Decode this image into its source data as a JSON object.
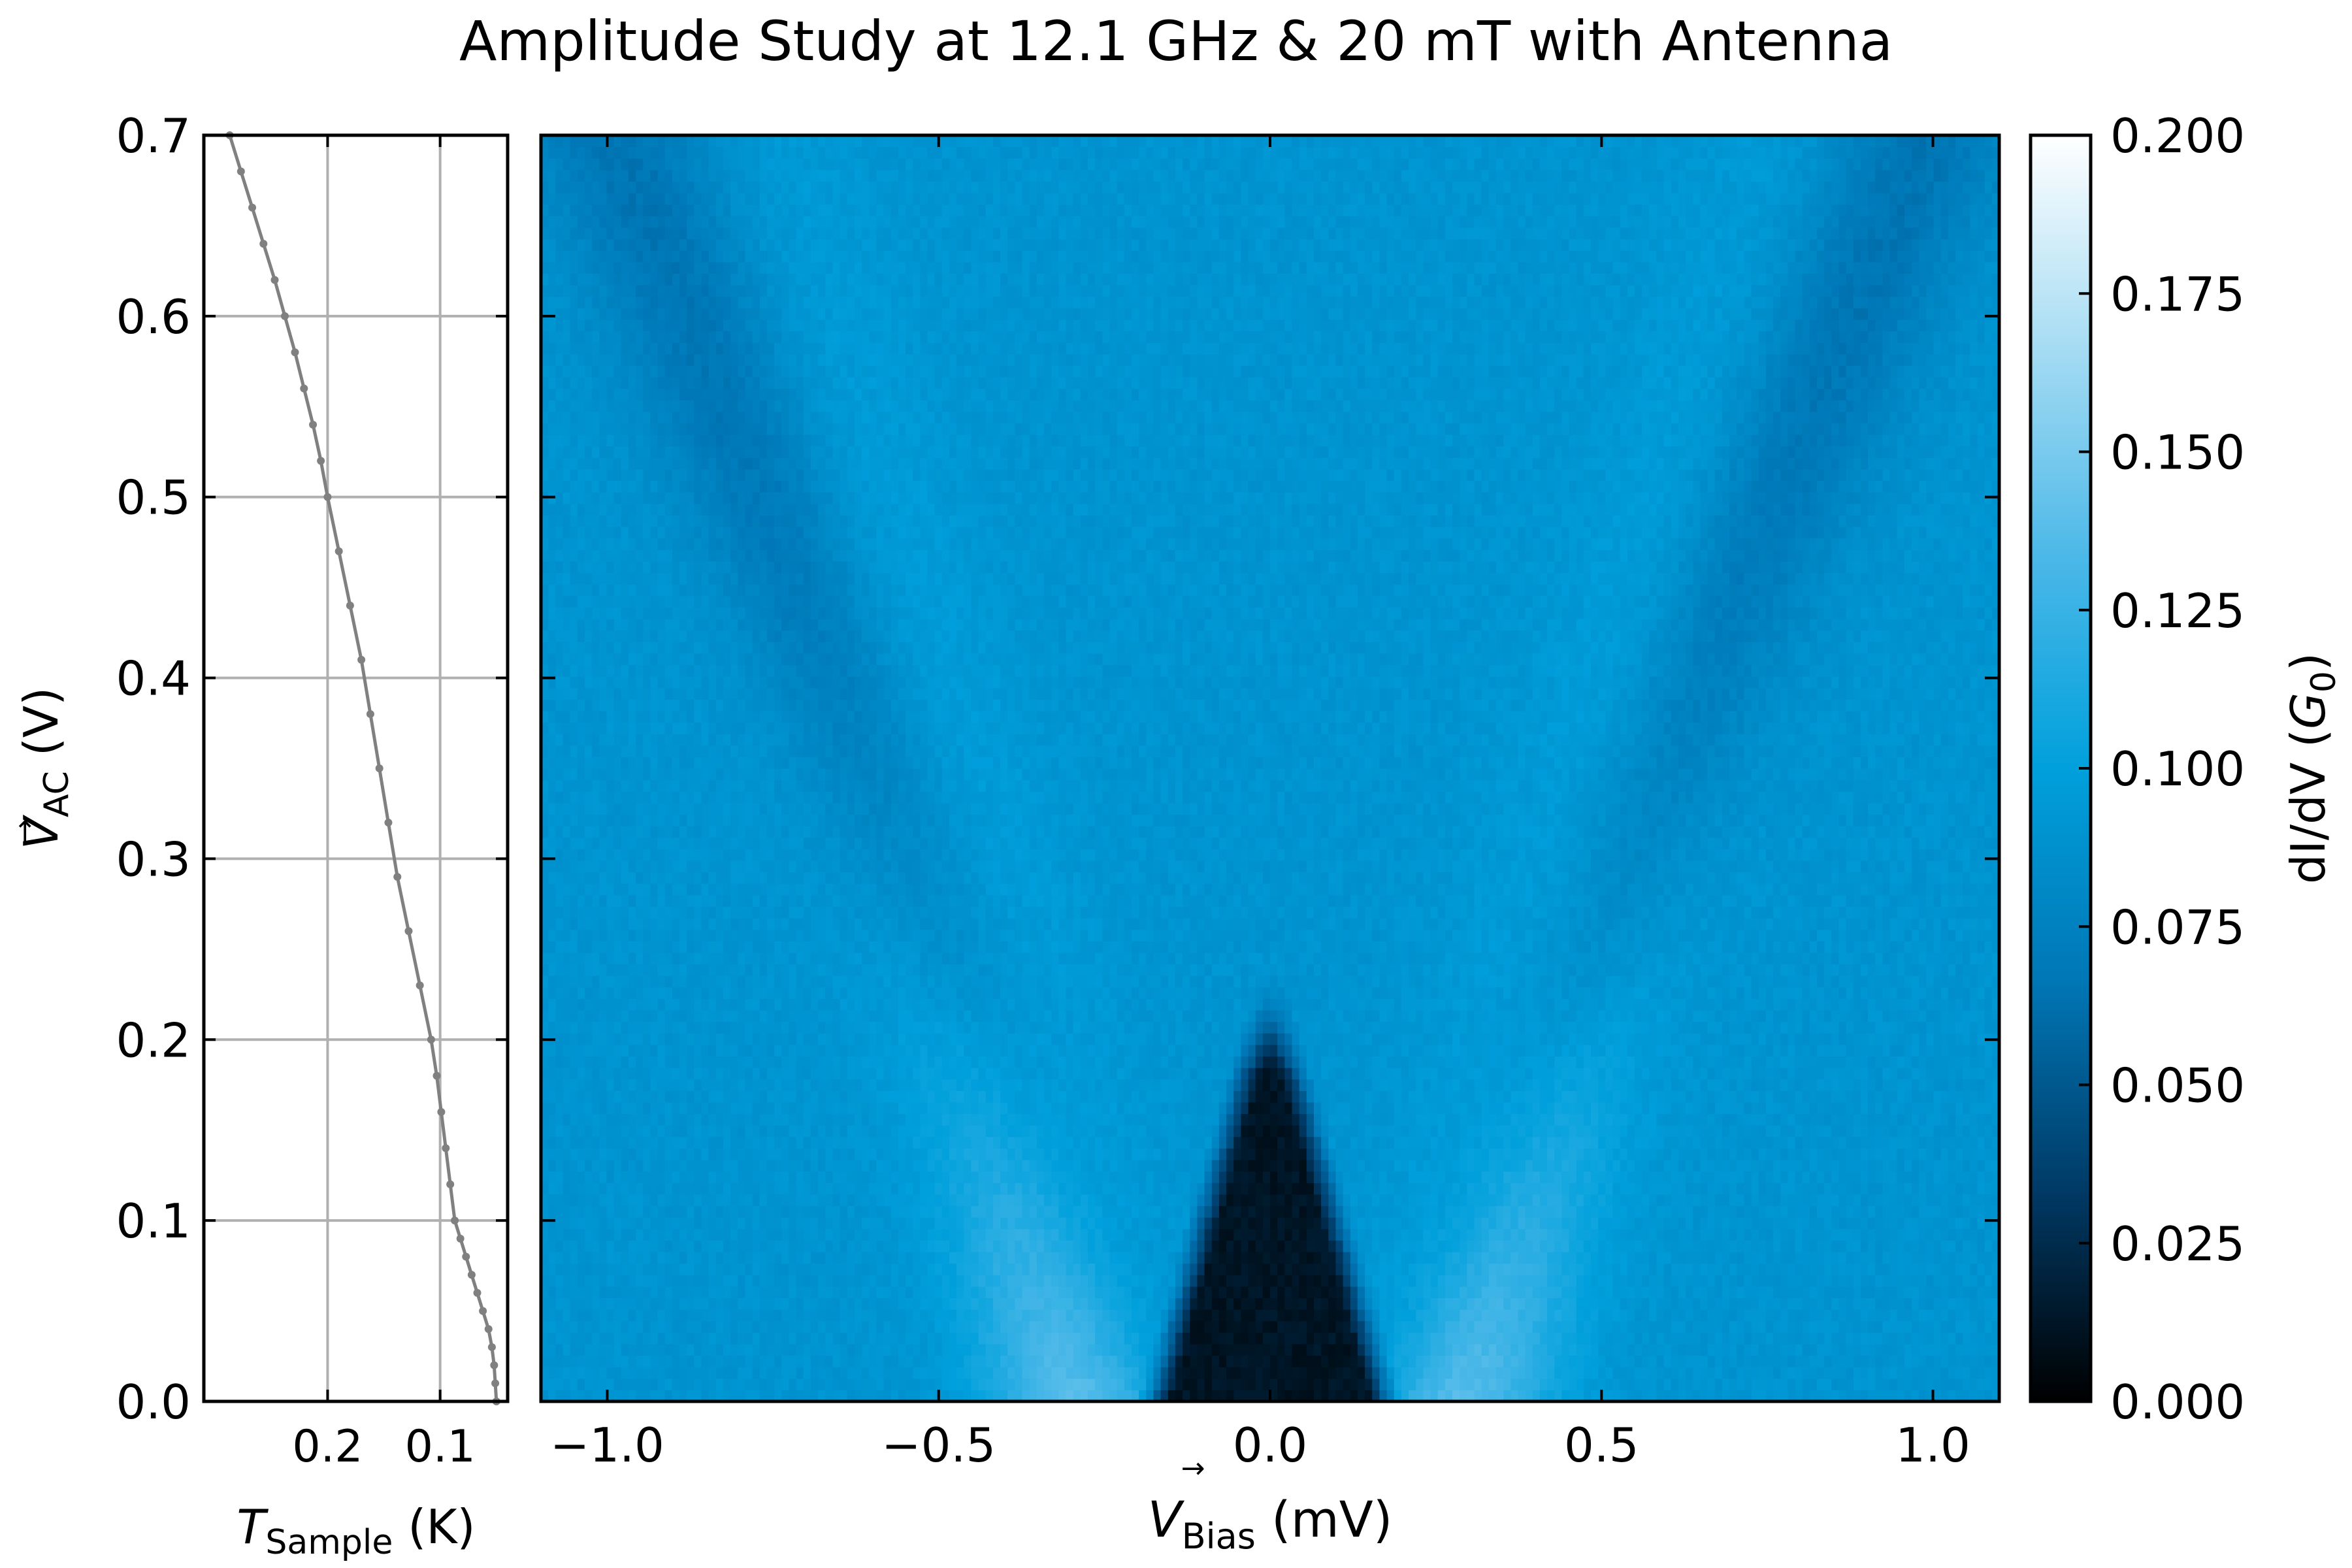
{
  "chart_data": [
    {
      "type": "line",
      "xlabel": {
        "main": "T",
        "sub": "Sample",
        "unit": " (K)"
      },
      "ylabel": {
        "main": "V",
        "arrow": "→",
        "sub": "AC",
        "unit": " (V)"
      },
      "xlim": [
        0.31,
        0.04
      ],
      "ylim": [
        0.0,
        0.7
      ],
      "x_ticks": [
        0.2,
        0.1
      ],
      "x_tick_labels": [
        "0.2",
        "0.1"
      ],
      "y_ticks": [
        0.0,
        0.1,
        0.2,
        0.3,
        0.4,
        0.5,
        0.6,
        0.7
      ],
      "y_tick_labels": [
        "0.0",
        "0.1",
        "0.2",
        "0.3",
        "0.4",
        "0.5",
        "0.6",
        "0.7"
      ],
      "grid": true,
      "series": [
        {
          "color": "#808080",
          "points": [
            [
              0.05,
              0.0
            ],
            [
              0.051,
              0.01
            ],
            [
              0.052,
              0.02
            ],
            [
              0.054,
              0.03
            ],
            [
              0.057,
              0.04
            ],
            [
              0.062,
              0.05
            ],
            [
              0.067,
              0.06
            ],
            [
              0.072,
              0.07
            ],
            [
              0.077,
              0.08
            ],
            [
              0.082,
              0.09
            ],
            [
              0.087,
              0.1
            ],
            [
              0.091,
              0.12
            ],
            [
              0.095,
              0.14
            ],
            [
              0.099,
              0.16
            ],
            [
              0.103,
              0.18
            ],
            [
              0.108,
              0.2
            ],
            [
              0.118,
              0.23
            ],
            [
              0.128,
              0.26
            ],
            [
              0.138,
              0.29
            ],
            [
              0.146,
              0.32
            ],
            [
              0.154,
              0.35
            ],
            [
              0.162,
              0.38
            ],
            [
              0.17,
              0.41
            ],
            [
              0.18,
              0.44
            ],
            [
              0.19,
              0.47
            ],
            [
              0.2,
              0.5
            ],
            [
              0.206,
              0.52
            ],
            [
              0.213,
              0.54
            ],
            [
              0.221,
              0.56
            ],
            [
              0.229,
              0.58
            ],
            [
              0.238,
              0.6
            ],
            [
              0.247,
              0.62
            ],
            [
              0.257,
              0.64
            ],
            [
              0.267,
              0.66
            ],
            [
              0.277,
              0.68
            ],
            [
              0.287,
              0.7
            ]
          ]
        }
      ]
    },
    {
      "type": "heatmap",
      "title": "Amplitude Study at 12.1 GHz & 20 mT with Antenna",
      "xlabel": {
        "main": "V",
        "arrow": "→",
        "sub": "Bias",
        "unit": " (mV)"
      },
      "xlim": [
        -1.1,
        1.1
      ],
      "ylim": [
        0.0,
        0.7
      ],
      "x_ticks": [
        -1.0,
        -0.5,
        0.0,
        0.5,
        1.0
      ],
      "x_tick_labels": [
        "−1.0",
        "−0.5",
        "0.0",
        "0.5",
        "1.0"
      ],
      "y_ticks": [
        0.0,
        0.1,
        0.2,
        0.3,
        0.4,
        0.5,
        0.6,
        0.7
      ],
      "colormap": [
        "#000000",
        "#003a66",
        "#0077b6",
        "#00a0dc",
        "#4bb8e8",
        "#a6dcf3",
        "#ffffff"
      ],
      "z_range": [
        0.0,
        0.2
      ],
      "pattern": {
        "background": 0.09,
        "gap_halfwidth_mV": 0.18,
        "gap_level": 0.012,
        "v_branch_slope_mV_per_V": 1.15,
        "v_branch_level": 0.065,
        "peak_level": 0.14
      },
      "colorbar": {
        "label": {
          "main": "dI/dV (",
          "sym": "G",
          "sub": "0",
          "end": ")"
        },
        "ticks": [
          0.0,
          0.025,
          0.05,
          0.075,
          0.1,
          0.125,
          0.15,
          0.175,
          0.2
        ],
        "tick_labels": [
          "0.000",
          "0.025",
          "0.050",
          "0.075",
          "0.100",
          "0.125",
          "0.150",
          "0.175",
          "0.200"
        ]
      }
    }
  ]
}
